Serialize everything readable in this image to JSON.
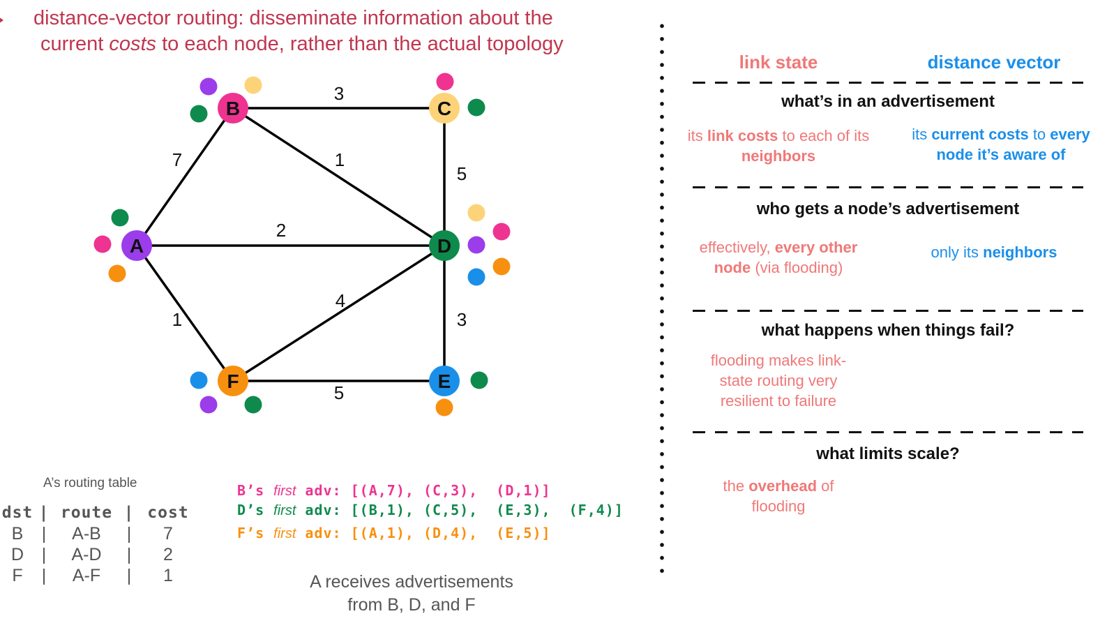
{
  "headline": {
    "line1": "distance-vector routing: disseminate information about the",
    "line2_pre": "current ",
    "line2_em": "costs",
    "line2_post": " to each node, rather than the actual topology"
  },
  "colors": {
    "A": "#9b3dea",
    "B": "#ee3390",
    "C": "#fdd37a",
    "D": "#0e8a4d",
    "E": "#1a8fea",
    "F": "#f8900f",
    "red": "#c0364f",
    "link_state": "#f07878",
    "distance_vector": "#1a8fea"
  },
  "graph": {
    "nodes": [
      {
        "id": "A",
        "label": "A"
      },
      {
        "id": "B",
        "label": "B"
      },
      {
        "id": "C",
        "label": "C"
      },
      {
        "id": "D",
        "label": "D"
      },
      {
        "id": "E",
        "label": "E"
      },
      {
        "id": "F",
        "label": "F"
      }
    ],
    "edges": [
      {
        "from": "B",
        "to": "C",
        "cost": "3"
      },
      {
        "from": "A",
        "to": "B",
        "cost": "7"
      },
      {
        "from": "B",
        "to": "D",
        "cost": "1"
      },
      {
        "from": "C",
        "to": "D",
        "cost": "5"
      },
      {
        "from": "A",
        "to": "D",
        "cost": "2"
      },
      {
        "from": "A",
        "to": "F",
        "cost": "1"
      },
      {
        "from": "F",
        "to": "D",
        "cost": "4"
      },
      {
        "from": "D",
        "to": "E",
        "cost": "3"
      },
      {
        "from": "F",
        "to": "E",
        "cost": "5"
      }
    ]
  },
  "routing_table": {
    "caption": "A’s routing table",
    "headers": [
      "dst",
      "route",
      "cost"
    ],
    "rows": [
      [
        "B",
        "A-B",
        "7"
      ],
      [
        "D",
        "A-D",
        "2"
      ],
      [
        "F",
        "A-F",
        "1"
      ]
    ]
  },
  "advertisements": [
    {
      "pre": "B’s ",
      "em": "first",
      "post": " adv: [(A,7), (C,3),  (D,1)]",
      "node": "B"
    },
    {
      "pre": "D’s ",
      "em": "first",
      "post": " adv: [(B,1), (C,5),  (E,3),  (F,4)]",
      "node": "D"
    },
    {
      "pre": "F’s ",
      "em": "first",
      "post": " adv: [(A,1), (D,4),  (E,5)]",
      "node": "F"
    }
  ],
  "caption": {
    "line1": "A receives advertisements",
    "line2": "from B, D, and F"
  },
  "comparison": {
    "link_state_header": "link state",
    "distance_vector_header": "distance vector",
    "sections": [
      {
        "title": "what’s in an advertisement",
        "ls": [
          {
            "t": "its ",
            "b": false
          },
          {
            "t": "link costs",
            "b": true
          },
          {
            "t": " to each of its ",
            "b": false
          },
          {
            "t": "neighbors",
            "b": true
          }
        ],
        "dv": [
          {
            "t": "its ",
            "b": false
          },
          {
            "t": "current costs",
            "b": true
          },
          {
            "t": " to ",
            "b": false
          },
          {
            "t": "every node it’s aware of",
            "b": true
          }
        ]
      },
      {
        "title": "who gets a node’s advertisement",
        "ls": [
          {
            "t": "effectively, ",
            "b": false
          },
          {
            "t": "every other node",
            "b": true
          },
          {
            "t": " (via flooding)",
            "b": false
          }
        ],
        "dv": [
          {
            "t": "only its ",
            "b": false
          },
          {
            "t": "neighbors",
            "b": true
          }
        ]
      },
      {
        "title": "what happens when things fail?",
        "ls": [
          {
            "t": "flooding makes link-state routing very resilient to failure",
            "b": false
          }
        ],
        "dv": []
      },
      {
        "title": "what limits scale?",
        "ls": [
          {
            "t": "the ",
            "b": false
          },
          {
            "t": "overhead",
            "b": true
          },
          {
            "t": " of flooding",
            "b": false
          }
        ],
        "dv": []
      }
    ]
  }
}
